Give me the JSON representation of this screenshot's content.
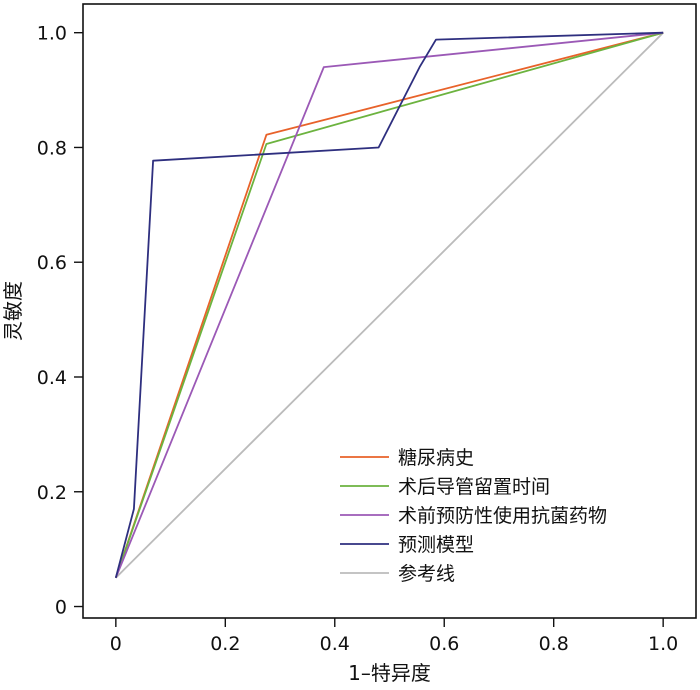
{
  "chart_data": {
    "type": "line",
    "xlabel": "1–特异度",
    "ylabel": "灵敏度",
    "xlim": [
      -0.06,
      1.06
    ],
    "ylim": [
      -0.02,
      1.05
    ],
    "x_ticks": [
      "0",
      "0.2",
      "0.4",
      "0.6",
      "0.8",
      "1.0"
    ],
    "x_tick_values": [
      0,
      0.2,
      0.4,
      0.6,
      0.8,
      1.0
    ],
    "y_ticks": [
      "0",
      "0.2",
      "0.4",
      "0.6",
      "0.8",
      "1.0"
    ],
    "y_tick_values": [
      0,
      0.2,
      0.4,
      0.6,
      0.8,
      1.0
    ],
    "grid": false,
    "legend_position": "bottom-right",
    "series": [
      {
        "name": "糖尿病史",
        "color": "#e8622a",
        "points": [
          [
            0,
            0.05
          ],
          [
            0.275,
            0.822
          ],
          [
            1.0,
            1.0
          ]
        ]
      },
      {
        "name": "术后导管留置时间",
        "color": "#6cb33f",
        "points": [
          [
            0,
            0.05
          ],
          [
            0.275,
            0.806
          ],
          [
            1.0,
            1.0
          ]
        ]
      },
      {
        "name": "术前预防性使用抗菌药物",
        "color": "#9b59b6",
        "points": [
          [
            0,
            0.05
          ],
          [
            0.38,
            0.94
          ],
          [
            1.0,
            1.0
          ]
        ]
      },
      {
        "name": "预测模型",
        "color": "#2e2f7f",
        "points": [
          [
            0,
            0.05
          ],
          [
            0.033,
            0.17
          ],
          [
            0.068,
            0.777
          ],
          [
            0.48,
            0.8
          ],
          [
            0.555,
            0.94
          ],
          [
            0.585,
            0.988
          ],
          [
            1.0,
            1.0
          ]
        ]
      },
      {
        "name": "参考线",
        "color": "#bbbbbb",
        "points": [
          [
            0,
            0.05
          ],
          [
            1.0,
            1.0
          ]
        ]
      }
    ]
  }
}
